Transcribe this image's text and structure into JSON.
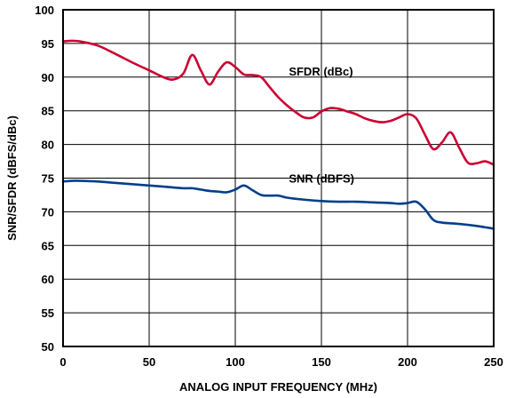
{
  "chart_data": {
    "type": "line",
    "title": "",
    "xlabel": "ANALOG INPUT FREQUENCY (MHz)",
    "ylabel": "SNR/SFDR (dBFS/dBc)",
    "xlim": [
      0,
      250
    ],
    "ylim": [
      50,
      100
    ],
    "xticks": [
      0,
      50,
      100,
      150,
      200,
      250
    ],
    "yticks": [
      50,
      55,
      60,
      65,
      70,
      75,
      80,
      85,
      90,
      95,
      100
    ],
    "grid": true,
    "legend": "none",
    "series": [
      {
        "name": "SFDR (dBc)",
        "color": "#cc0033",
        "x": [
          0,
          5,
          10,
          20,
          30,
          40,
          50,
          60,
          65,
          70,
          75,
          80,
          85,
          90,
          95,
          100,
          105,
          110,
          115,
          120,
          125,
          130,
          135,
          140,
          145,
          150,
          155,
          160,
          165,
          170,
          175,
          180,
          185,
          190,
          195,
          200,
          205,
          210,
          215,
          220,
          225,
          230,
          235,
          240,
          245,
          250
        ],
        "y": [
          95.3,
          95.4,
          95.3,
          94.7,
          93.5,
          92.2,
          91.0,
          89.8,
          89.7,
          90.6,
          93.3,
          91.0,
          88.9,
          90.8,
          92.2,
          91.5,
          90.4,
          90.3,
          90.0,
          88.5,
          87.0,
          85.8,
          84.8,
          84.0,
          84.0,
          84.9,
          85.4,
          85.3,
          84.9,
          84.5,
          83.9,
          83.5,
          83.3,
          83.5,
          84.0,
          84.5,
          83.9,
          81.5,
          79.3,
          80.3,
          81.8,
          79.5,
          77.3,
          77.2,
          77.5,
          77.0
        ]
      },
      {
        "name": "SNR (dBFS)",
        "color": "#003f8a",
        "x": [
          0,
          5,
          10,
          20,
          30,
          40,
          50,
          60,
          70,
          75,
          80,
          85,
          90,
          95,
          100,
          105,
          110,
          115,
          120,
          125,
          130,
          140,
          150,
          160,
          170,
          180,
          190,
          195,
          200,
          205,
          210,
          215,
          220,
          230,
          240,
          250
        ],
        "y": [
          74.5,
          74.6,
          74.6,
          74.5,
          74.3,
          74.1,
          73.9,
          73.7,
          73.5,
          73.5,
          73.3,
          73.1,
          73.0,
          72.9,
          73.3,
          73.9,
          73.2,
          72.5,
          72.4,
          72.4,
          72.1,
          71.8,
          71.6,
          71.5,
          71.5,
          71.4,
          71.3,
          71.2,
          71.3,
          71.5,
          70.4,
          68.8,
          68.4,
          68.2,
          67.9,
          67.5
        ]
      }
    ],
    "annotations": [
      {
        "text": "SFDR (dBc)",
        "x": 128,
        "y": 90.9
      },
      {
        "text": "SNR (dBFS)",
        "x": 128,
        "y": 75.0
      }
    ]
  }
}
